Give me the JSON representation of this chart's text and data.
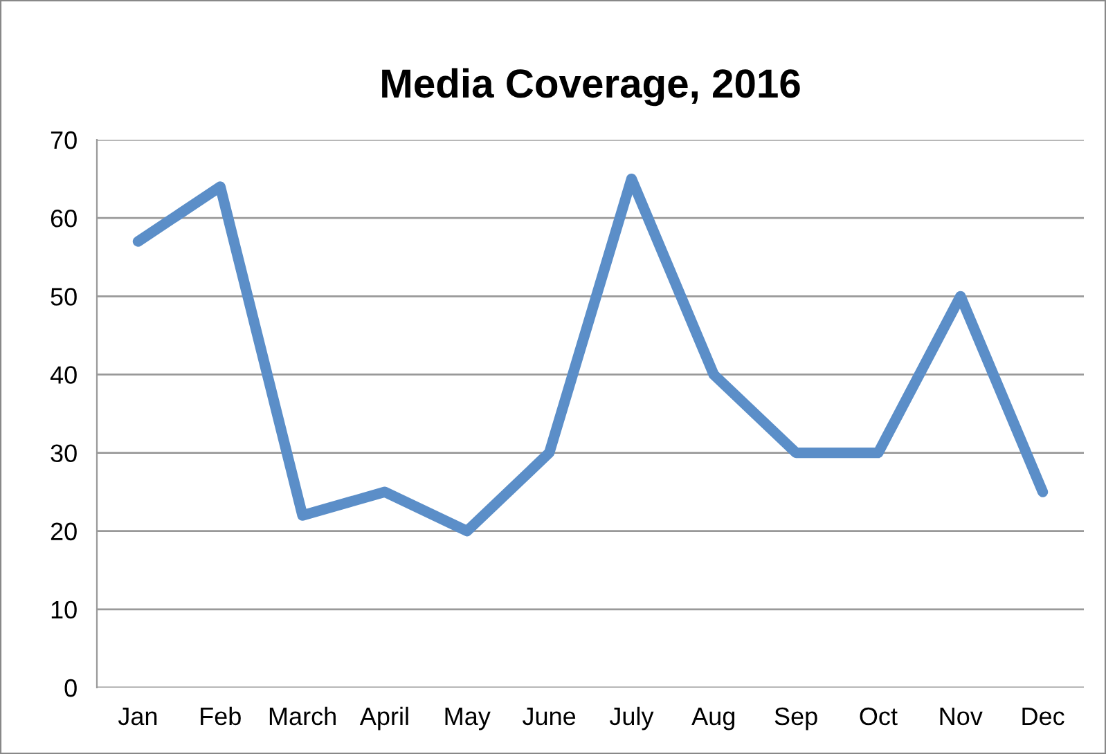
{
  "chart_data": {
    "type": "line",
    "title": "Media Coverage, 2016",
    "categories": [
      "Jan",
      "Feb",
      "March",
      "April",
      "May",
      "June",
      "July",
      "Aug",
      "Sep",
      "Oct",
      "Nov",
      "Dec"
    ],
    "series": [
      {
        "color": "#5b8ec8",
        "values": [
          57,
          64,
          22,
          25,
          20,
          30,
          65,
          40,
          30,
          30,
          50,
          25
        ]
      }
    ],
    "ylim": [
      0,
      70
    ],
    "yticks": [
      0,
      10,
      20,
      30,
      40,
      50,
      60,
      70
    ],
    "grid": "y",
    "legend": false,
    "marker": "none",
    "line_style": "solid"
  }
}
